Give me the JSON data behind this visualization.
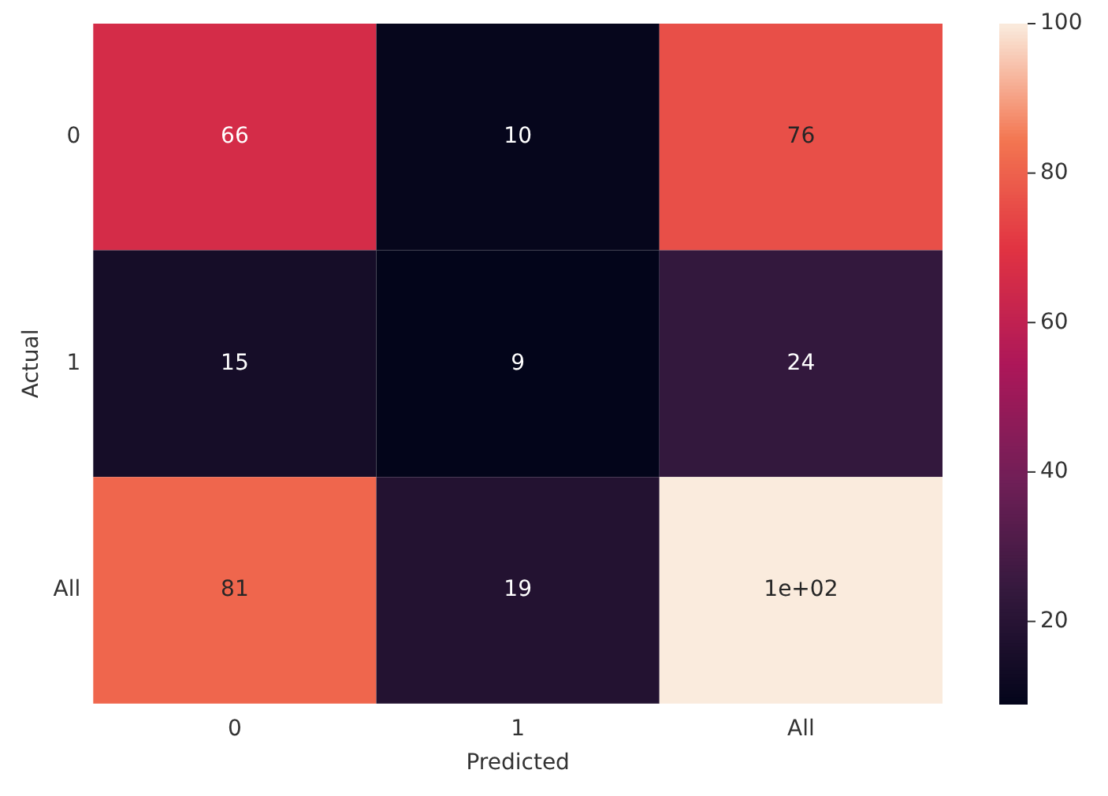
{
  "chart_data": {
    "type": "heatmap",
    "xlabel": "Predicted",
    "ylabel": "Actual",
    "categories": [
      "0",
      "1",
      "All"
    ],
    "y_categories": [
      "0",
      "1",
      "All"
    ],
    "cells": [
      [
        66,
        10,
        76
      ],
      [
        15,
        9,
        24
      ],
      [
        81,
        19,
        100
      ]
    ],
    "cell_labels": [
      [
        "66",
        "10",
        "76"
      ],
      [
        "15",
        "9",
        "24"
      ],
      [
        "81",
        "19",
        "1e+02"
      ]
    ],
    "clim": [
      9,
      100
    ],
    "cticks": [
      20,
      40,
      60,
      80,
      100
    ]
  }
}
